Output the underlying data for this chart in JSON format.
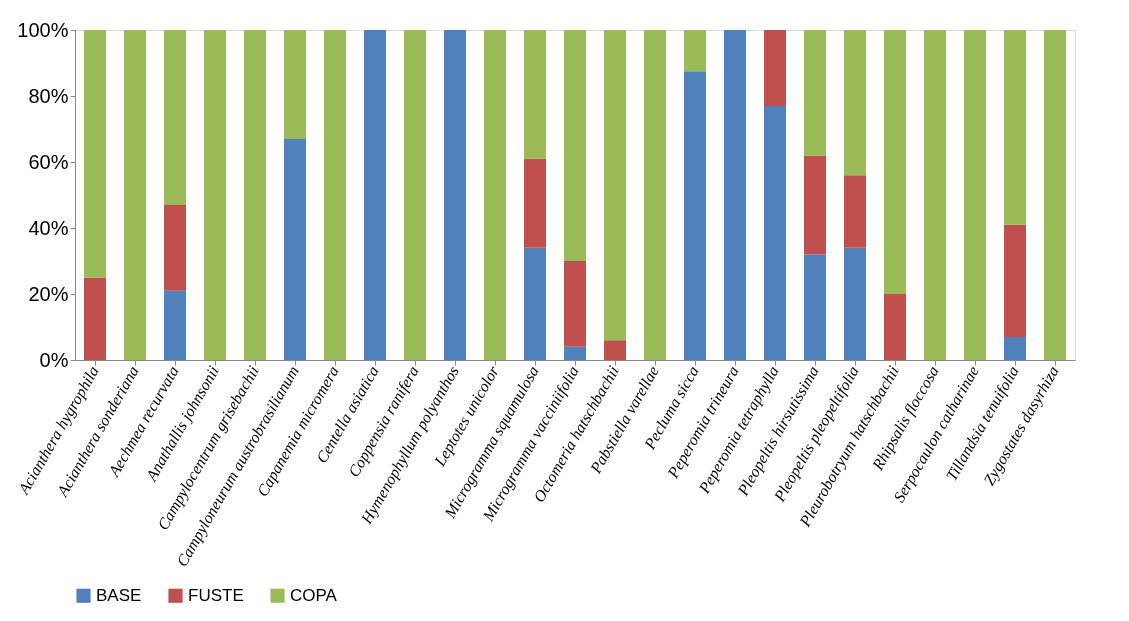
{
  "chart_data": {
    "type": "bar",
    "stacked": true,
    "categories": [
      "Acianthera hygrophila",
      "Acianthera sonderiana",
      "Aechmea recurvata",
      "Anathallis johnsonii",
      "Campylocentrum grisebachii",
      "Campyloneurum austrobrasilianum",
      "Capanemia micromera",
      "Centella asiatica",
      "Coppensia ranifera",
      "Hymenophyllum polyanthos",
      "Leptotes unicolor",
      "Microgramma squamulosa",
      "Microgramma vacciniifolia",
      "Octomeria hatschbachii",
      "Pabstiella varellae",
      "Pecluma sicca",
      "Peperomia trineura",
      "Peperomia tetraphylla",
      "Pleopeltis hirsutissima",
      "Pleopeltis pleopeltifolia",
      "Pleurobotryum hatschbachii",
      "Rhipsalis floccosa",
      "Serpocaulon catharinae",
      "Tillandsia tenuifolia",
      "Zygostates dasyrhiza"
    ],
    "series": [
      {
        "name": "BASE",
        "color": "#4f81bd",
        "values": [
          0,
          0,
          21,
          0,
          0,
          67,
          0,
          100,
          0,
          100,
          0,
          34,
          4,
          0,
          0,
          87.5,
          100,
          77,
          32,
          34,
          0,
          0,
          0,
          7,
          0
        ]
      },
      {
        "name": "FUSTE",
        "color": "#c0504d",
        "values": [
          25,
          0,
          26,
          0,
          0,
          0,
          0,
          0,
          0,
          0,
          0,
          27,
          26,
          6,
          0,
          0,
          0,
          23,
          30,
          22,
          20,
          0,
          0,
          34,
          0
        ]
      },
      {
        "name": "COPA",
        "color": "#9bbb59",
        "values": [
          75,
          100,
          53,
          100,
          100,
          33,
          100,
          0,
          100,
          0,
          100,
          39,
          70,
          94,
          100,
          12.5,
          0,
          0,
          38,
          44,
          80,
          100,
          100,
          59,
          100
        ]
      }
    ],
    "ylim": [
      0,
      100
    ],
    "yticks": [
      {
        "value": 0,
        "label": "0%"
      },
      {
        "value": 20,
        "label": "20%"
      },
      {
        "value": 40,
        "label": "40%"
      },
      {
        "value": 60,
        "label": "60%"
      },
      {
        "value": 80,
        "label": "80%"
      },
      {
        "value": 100,
        "label": "100%"
      }
    ],
    "grid": false,
    "legend": "bottom"
  }
}
